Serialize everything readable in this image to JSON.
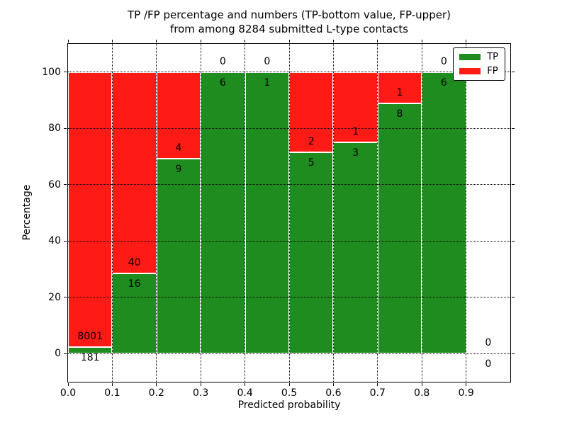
{
  "figure": {
    "title_line1": "TP /FP percentage and numbers (TP-bottom value, FP-upper)",
    "title_line2": "from among 8284 submitted L-type contacts"
  },
  "axes": {
    "xlabel": "Predicted probability",
    "ylabel": "Percentage",
    "x_ticks": [
      "0.0",
      "0.1",
      "0.2",
      "0.3",
      "0.4",
      "0.5",
      "0.6",
      "0.7",
      "0.8",
      "0.9"
    ],
    "y_ticks": [
      "0",
      "20",
      "40",
      "60",
      "80",
      "100"
    ],
    "xlim": [
      0.0,
      1.0
    ],
    "ylim": [
      -10,
      110
    ],
    "grid_style": "dotted"
  },
  "legend": {
    "position": "upper right",
    "entries": [
      {
        "label": "TP",
        "color": "#1f8c1f"
      },
      {
        "label": "FP",
        "color": "#ff1b15"
      }
    ]
  },
  "chart_data": {
    "type": "bar",
    "subtype": "stacked-percentage",
    "title": "TP /FP percentage and numbers (TP-bottom value, FP-upper) from among 8284 submitted L-type contacts",
    "xlabel": "Predicted probability",
    "ylabel": "Percentage",
    "total_contacts": 8284,
    "bin_width": 0.1,
    "colors": {
      "tp": "#1f8c1f",
      "fp": "#ff1b15"
    },
    "annotation_note": "FP count shown above TP/FP boundary, TP count shown below it",
    "bins": [
      {
        "range": [
          0.0,
          0.1
        ],
        "tp": 181,
        "fp": 8001
      },
      {
        "range": [
          0.1,
          0.2
        ],
        "tp": 16,
        "fp": 40
      },
      {
        "range": [
          0.2,
          0.3
        ],
        "tp": 9,
        "fp": 4
      },
      {
        "range": [
          0.3,
          0.4
        ],
        "tp": 6,
        "fp": 0
      },
      {
        "range": [
          0.4,
          0.5
        ],
        "tp": 1,
        "fp": 0
      },
      {
        "range": [
          0.5,
          0.6
        ],
        "tp": 5,
        "fp": 2
      },
      {
        "range": [
          0.6,
          0.7
        ],
        "tp": 3,
        "fp": 1
      },
      {
        "range": [
          0.7,
          0.8
        ],
        "tp": 8,
        "fp": 1
      },
      {
        "range": [
          0.8,
          0.9
        ],
        "tp": 6,
        "fp": 0
      },
      {
        "range": [
          0.9,
          1.0
        ],
        "tp": 0,
        "fp": 0
      }
    ]
  }
}
